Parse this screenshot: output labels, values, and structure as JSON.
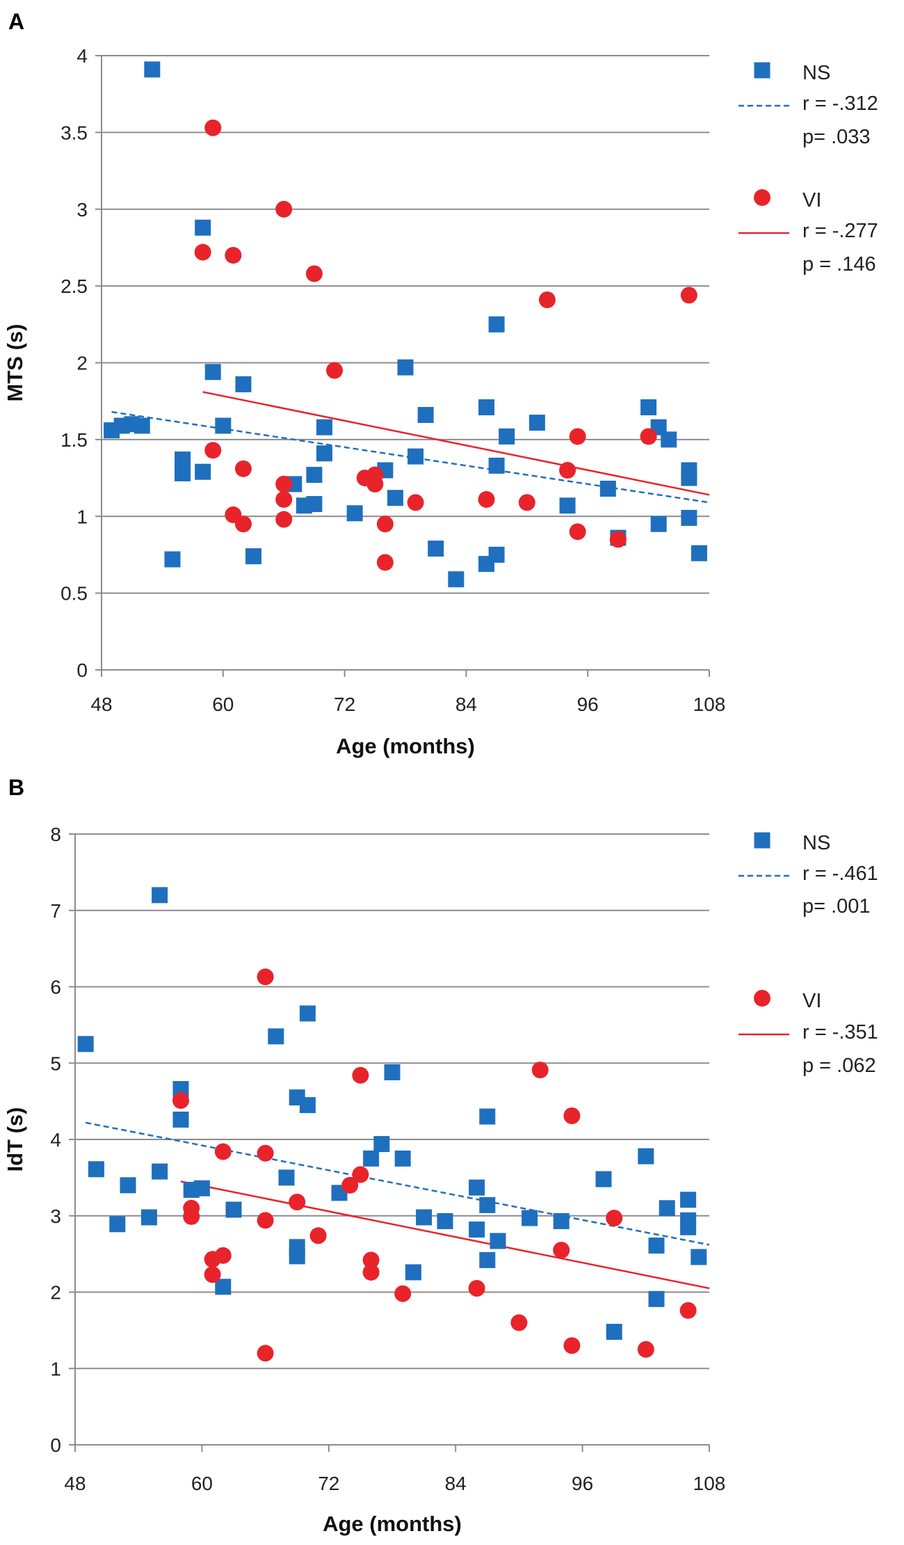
{
  "chart_data": [
    {
      "panel_label": "A",
      "type": "scatter",
      "xlabel": "Age (months)",
      "ylabel": "MTS (s)",
      "xlim": [
        48,
        108
      ],
      "ylim": [
        0,
        4
      ],
      "xticks": [
        "48",
        "60",
        "72",
        "84",
        "96",
        "108"
      ],
      "yticks": [
        "0",
        "0.5",
        "1",
        "1.5",
        "2",
        "2.5",
        "3",
        "3.5",
        "4"
      ],
      "grid": "horizontal",
      "legend_position": "right",
      "series": [
        {
          "name": "NS",
          "marker": "square",
          "color": "#1f6fbf",
          "fit_label_r": "r = -.312",
          "fit_label_p": "p= .033",
          "fit_style": "dashed",
          "fit": [
            [
              49,
              1.68
            ],
            [
              108,
              1.09
            ]
          ],
          "points": [
            [
              49,
              1.56
            ],
            [
              50,
              1.59
            ],
            [
              51,
              1.6
            ],
            [
              52,
              1.59
            ],
            [
              53,
              3.91
            ],
            [
              55,
              0.72
            ],
            [
              56,
              1.37
            ],
            [
              56,
              1.32
            ],
            [
              56,
              1.28
            ],
            [
              58,
              2.88
            ],
            [
              58,
              1.29
            ],
            [
              59,
              1.94
            ],
            [
              60,
              1.59
            ],
            [
              62,
              1.86
            ],
            [
              63,
              0.74
            ],
            [
              67,
              1.21
            ],
            [
              68,
              1.07
            ],
            [
              69,
              1.27
            ],
            [
              69,
              1.08
            ],
            [
              70,
              1.58
            ],
            [
              70,
              1.41
            ],
            [
              73,
              1.02
            ],
            [
              76,
              1.3
            ],
            [
              77,
              1.12
            ],
            [
              78,
              1.97
            ],
            [
              79,
              1.39
            ],
            [
              80,
              1.66
            ],
            [
              81,
              0.79
            ],
            [
              83,
              0.59
            ],
            [
              86,
              1.71
            ],
            [
              86,
              0.69
            ],
            [
              87,
              2.25
            ],
            [
              87,
              0.75
            ],
            [
              87,
              1.33
            ],
            [
              88,
              1.52
            ],
            [
              91,
              1.61
            ],
            [
              94,
              1.07
            ],
            [
              98,
              1.18
            ],
            [
              99,
              0.86
            ],
            [
              102,
              1.71
            ],
            [
              103,
              1.58
            ],
            [
              103,
              0.95
            ],
            [
              104,
              1.5
            ],
            [
              106,
              1.3
            ],
            [
              106,
              1.25
            ],
            [
              106,
              0.99
            ],
            [
              107,
              0.76
            ]
          ]
        },
        {
          "name": "VI",
          "marker": "circle",
          "color": "#e8232a",
          "fit_label_r": "r = -.277",
          "fit_label_p": "p  = .146",
          "fit_style": "solid",
          "fit": [
            [
              58,
              1.81
            ],
            [
              108,
              1.14
            ]
          ],
          "points": [
            [
              58,
              2.72
            ],
            [
              59,
              3.53
            ],
            [
              59,
              1.43
            ],
            [
              61,
              2.7
            ],
            [
              61,
              1.01
            ],
            [
              62,
              1.31
            ],
            [
              62,
              0.95
            ],
            [
              66,
              3.0
            ],
            [
              66,
              1.21
            ],
            [
              66,
              1.11
            ],
            [
              66,
              0.98
            ],
            [
              69,
              2.58
            ],
            [
              71,
              1.95
            ],
            [
              74,
              1.25
            ],
            [
              75,
              1.27
            ],
            [
              75,
              1.21
            ],
            [
              76,
              0.95
            ],
            [
              76,
              0.7
            ],
            [
              79,
              1.09
            ],
            [
              86,
              1.11
            ],
            [
              90,
              1.09
            ],
            [
              92,
              2.41
            ],
            [
              94,
              1.3
            ],
            [
              95,
              1.52
            ],
            [
              95,
              0.9
            ],
            [
              99,
              0.85
            ],
            [
              102,
              1.52
            ],
            [
              106,
              2.44
            ]
          ]
        }
      ]
    },
    {
      "panel_label": "B",
      "type": "scatter",
      "xlabel": "Age (months)",
      "ylabel": "IdT (s)",
      "xlim": [
        48,
        108
      ],
      "ylim": [
        0,
        8
      ],
      "xticks": [
        "48",
        "60",
        "72",
        "84",
        "96",
        "108"
      ],
      "yticks": [
        "0",
        "1",
        "2",
        "3",
        "4",
        "5",
        "6",
        "7",
        "8"
      ],
      "grid": "horizontal",
      "legend_position": "right",
      "series": [
        {
          "name": "NS",
          "marker": "square",
          "color": "#1f6fbf",
          "fit_label_r": "r = -.461",
          "fit_label_p": "p= .001",
          "fit_style": "dashed",
          "fit": [
            [
              49,
              4.22
            ],
            [
              108,
              2.62
            ]
          ],
          "points": [
            [
              49,
              5.25
            ],
            [
              50,
              3.61
            ],
            [
              52,
              2.89
            ],
            [
              53,
              3.4
            ],
            [
              55,
              2.98
            ],
            [
              56,
              7.2
            ],
            [
              56,
              3.58
            ],
            [
              58,
              4.66
            ],
            [
              58,
              4.26
            ],
            [
              59,
              3.34
            ],
            [
              60,
              3.36
            ],
            [
              62,
              2.07
            ],
            [
              63,
              3.08
            ],
            [
              67,
              5.35
            ],
            [
              68,
              3.5
            ],
            [
              69,
              4.55
            ],
            [
              69,
              2.59
            ],
            [
              69,
              2.47
            ],
            [
              70,
              5.65
            ],
            [
              70,
              4.45
            ],
            [
              73,
              3.3
            ],
            [
              76,
              3.75
            ],
            [
              77,
              3.94
            ],
            [
              78,
              4.88
            ],
            [
              79,
              3.75
            ],
            [
              80,
              2.26
            ],
            [
              81,
              2.98
            ],
            [
              83,
              2.93
            ],
            [
              86,
              3.37
            ],
            [
              86,
              2.82
            ],
            [
              87,
              4.3
            ],
            [
              87,
              3.14
            ],
            [
              87,
              2.42
            ],
            [
              88,
              2.67
            ],
            [
              91,
              2.97
            ],
            [
              94,
              2.93
            ],
            [
              98,
              3.48
            ],
            [
              99,
              1.48
            ],
            [
              102,
              3.78
            ],
            [
              103,
              2.61
            ],
            [
              103,
              1.91
            ],
            [
              104,
              3.1
            ],
            [
              106,
              3.21
            ],
            [
              106,
              2.94
            ],
            [
              106,
              2.85
            ],
            [
              107,
              2.46
            ]
          ]
        },
        {
          "name": "VI",
          "marker": "circle",
          "color": "#e8232a",
          "fit_label_r": "r = -.351",
          "fit_label_p": "p  = .062",
          "fit_style": "solid",
          "fit": [
            [
              58,
              3.45
            ],
            [
              108,
              2.05
            ]
          ],
          "points": [
            [
              58,
              4.51
            ],
            [
              59,
              3.1
            ],
            [
              59,
              2.99
            ],
            [
              61,
              2.43
            ],
            [
              61,
              2.23
            ],
            [
              62,
              3.84
            ],
            [
              62,
              2.48
            ],
            [
              66,
              6.13
            ],
            [
              66,
              3.82
            ],
            [
              66,
              2.94
            ],
            [
              66,
              1.2
            ],
            [
              69,
              3.18
            ],
            [
              71,
              2.74
            ],
            [
              74,
              3.4
            ],
            [
              75,
              3.54
            ],
            [
              75,
              4.84
            ],
            [
              76,
              2.42
            ],
            [
              76,
              2.26
            ],
            [
              79,
              1.98
            ],
            [
              86,
              2.05
            ],
            [
              90,
              1.6
            ],
            [
              92,
              4.91
            ],
            [
              94,
              2.55
            ],
            [
              95,
              4.31
            ],
            [
              95,
              1.3
            ],
            [
              99,
              2.97
            ],
            [
              102,
              1.25
            ],
            [
              106,
              1.76
            ]
          ]
        }
      ]
    }
  ]
}
